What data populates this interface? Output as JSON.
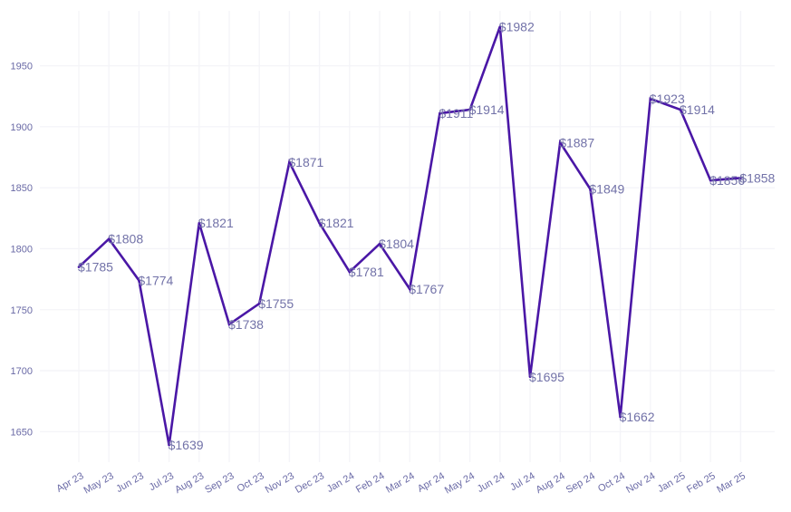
{
  "chart_data": {
    "type": "line",
    "title": "",
    "xlabel": "",
    "ylabel": "",
    "categories": [
      "Apr 23",
      "May 23",
      "Jun 23",
      "Jul 23",
      "Aug 23",
      "Sep 23",
      "Oct 23",
      "Nov 23",
      "Dec 23",
      "Jan 24",
      "Feb 24",
      "Mar 24",
      "Apr 24",
      "May 24",
      "Jun 24",
      "Jul 24",
      "Aug 24",
      "Sep 24",
      "Oct 24",
      "Nov 24",
      "Jan 25",
      "Feb 25",
      "Mar 25"
    ],
    "values": [
      1785,
      1808,
      1774,
      1639,
      1821,
      1738,
      1755,
      1871,
      1821,
      1781,
      1804,
      1767,
      1911,
      1914,
      1982,
      1695,
      1887,
      1849,
      1662,
      1923,
      1914,
      1856,
      1858
    ],
    "data_labels": [
      "$1785",
      "$1808",
      "$1774",
      "$1639",
      "$1821",
      "$1738",
      "$1755",
      "$1871",
      "$1821",
      "$1781",
      "$1804",
      "$1767",
      "$1911",
      "$1914",
      "$1982",
      "$1695",
      "$1887",
      "$1849",
      "$1662",
      "$1923",
      "$1914",
      "$1856",
      "$1858"
    ],
    "y_ticks": [
      "1650",
      "1700",
      "1750",
      "1800",
      "1850",
      "1900",
      "1950"
    ],
    "ylim": [
      1625,
      1995
    ],
    "grid": true,
    "legend": "none",
    "line_color": "#4a17a6",
    "text_color": "#6a6aa6"
  }
}
